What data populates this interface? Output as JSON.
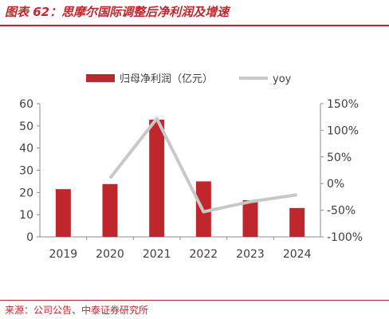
{
  "header": {
    "title": "图表 62：思摩尔国际调整后净利润及增速"
  },
  "footer": {
    "source": "来源：公司公告、中泰证券研究所"
  },
  "colors": {
    "bar": "#c0272d",
    "line": "#c8c8c8",
    "accent": "#c0272d",
    "axis": "#8c8c8c",
    "text": "#404040"
  },
  "chart_data": {
    "type": "bar",
    "categories": [
      "2019",
      "2020",
      "2021",
      "2022",
      "2023",
      "2024"
    ],
    "series": [
      {
        "name": "归母净利润（亿元）",
        "type": "bar",
        "axis": "left",
        "values": [
          21.5,
          23.8,
          52.8,
          25.0,
          16.5,
          13.0
        ]
      },
      {
        "name": "yoy",
        "type": "line",
        "axis": "right",
        "unit": "%",
        "values": [
          null,
          10,
          122,
          -53,
          -34,
          -21
        ]
      }
    ],
    "ylim_left": [
      0,
      60
    ],
    "yticks_left": [
      "0",
      "10",
      "20",
      "30",
      "40",
      "50",
      "60"
    ],
    "ylim_right": [
      -100,
      150
    ],
    "yticks_right": [
      "-100%",
      "-50%",
      "0%",
      "50%",
      "100%",
      "150%"
    ],
    "legend": "top",
    "grid": false
  }
}
